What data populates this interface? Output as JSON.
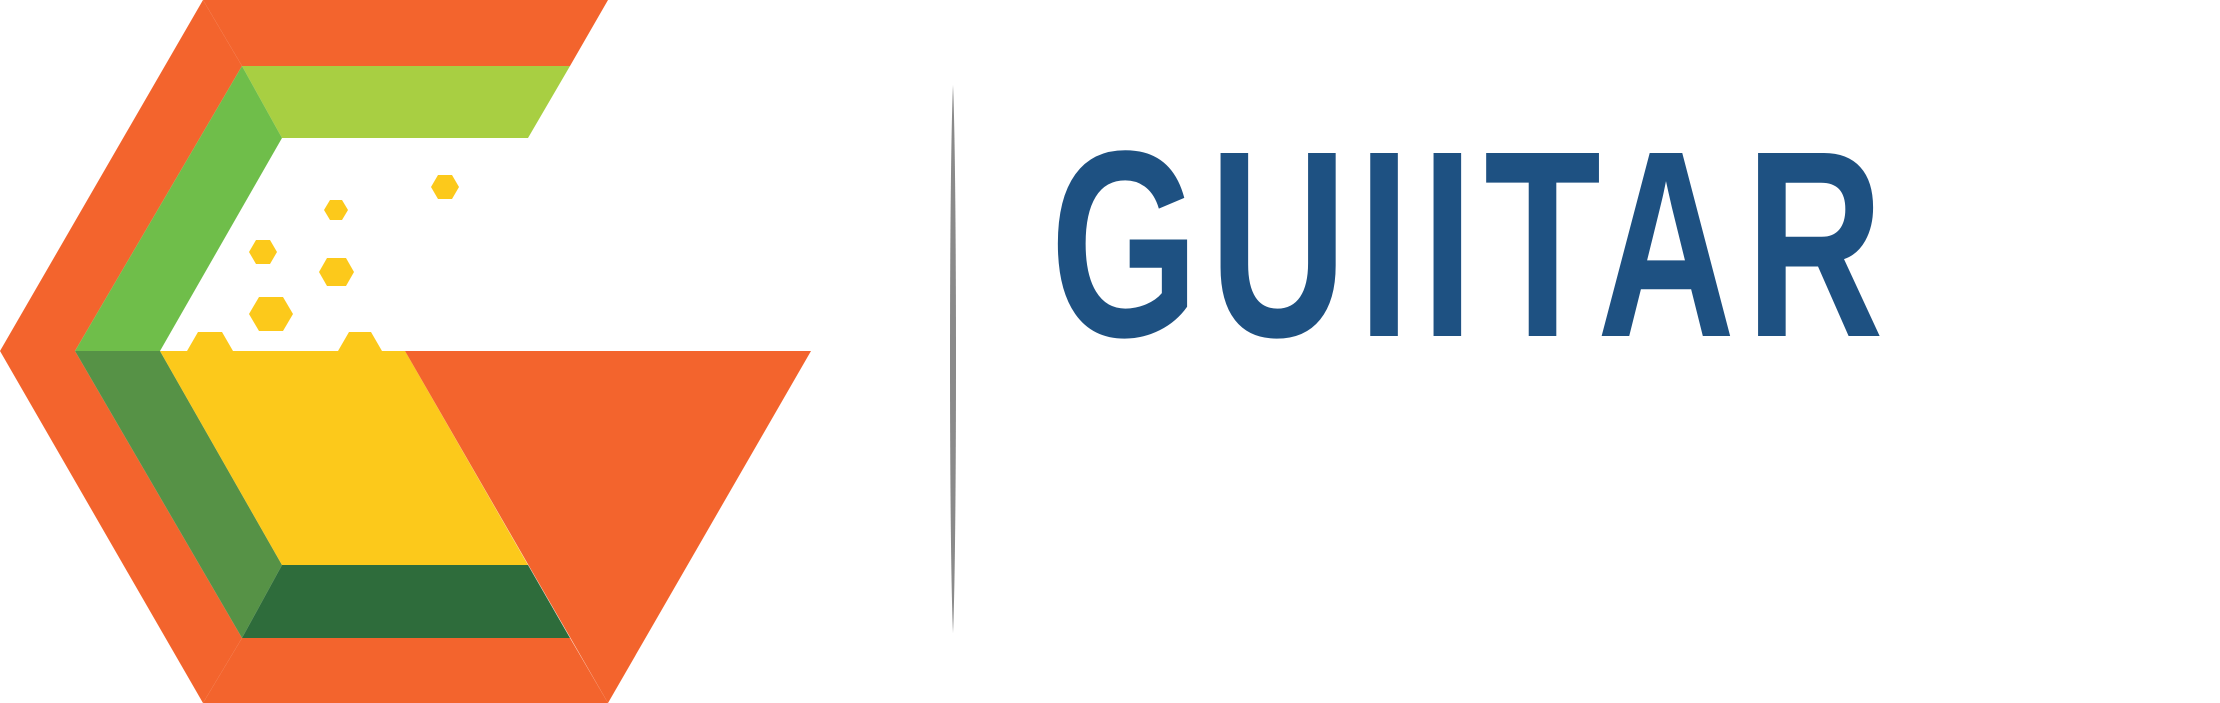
{
  "brand": {
    "name": "GUIITAR",
    "colors": {
      "orange": "#f3642d",
      "lime": "#a8cf42",
      "green": "#6fbe4a",
      "dark_green": "#2e6c3b",
      "mid_green": "#569246",
      "yellow": "#fcc91b",
      "navy": "#1e5182",
      "divider": "#8a8a8a"
    }
  }
}
